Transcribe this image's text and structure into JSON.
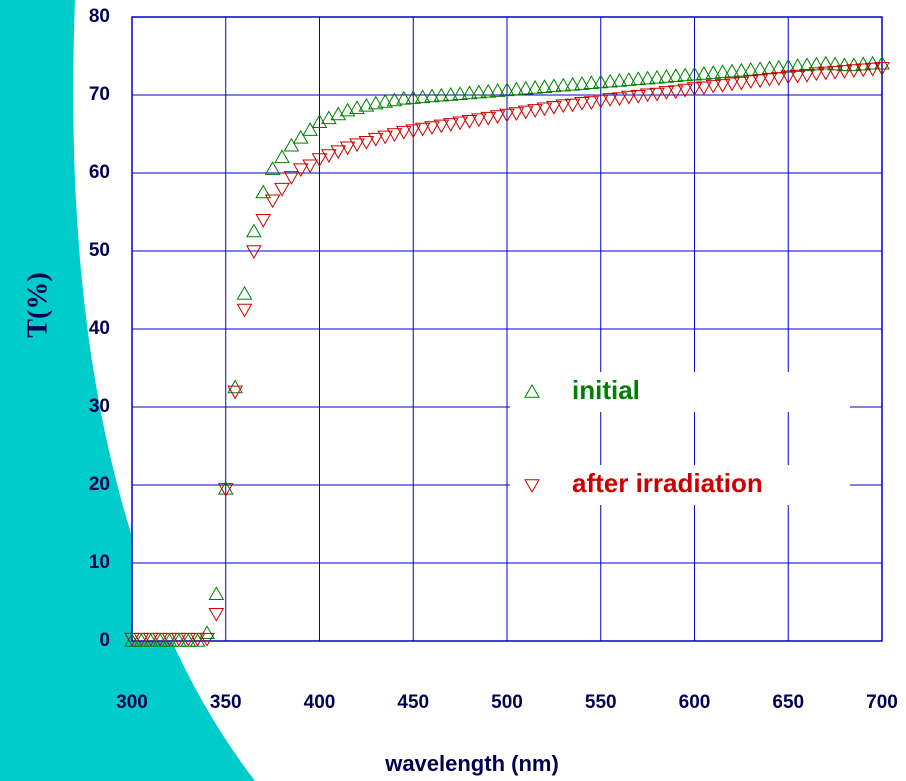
{
  "chart_data": {
    "type": "scatter",
    "xlabel": "wavelength (nm)",
    "ylabel": "T(%)",
    "x": [
      300,
      305,
      310,
      315,
      320,
      325,
      330,
      335,
      340,
      345,
      350,
      355,
      360,
      365,
      370,
      375,
      380,
      385,
      390,
      395,
      400,
      405,
      410,
      415,
      420,
      425,
      430,
      435,
      440,
      445,
      450,
      455,
      460,
      465,
      470,
      475,
      480,
      485,
      490,
      495,
      500,
      505,
      510,
      515,
      520,
      525,
      530,
      535,
      540,
      545,
      550,
      555,
      560,
      565,
      570,
      575,
      580,
      585,
      590,
      595,
      600,
      605,
      610,
      615,
      620,
      625,
      630,
      635,
      640,
      645,
      650,
      655,
      660,
      665,
      670,
      675,
      680,
      685,
      690,
      695,
      700
    ],
    "series": [
      {
        "name": "initial",
        "color": "#008000",
        "marker": "triangle-up",
        "values": [
          0,
          0,
          0,
          0,
          0,
          0,
          0,
          0,
          1,
          6,
          19.5,
          32.5,
          44.5,
          52.5,
          57.5,
          60.5,
          62,
          63.5,
          64.5,
          65.5,
          66.5,
          67,
          67.5,
          68,
          68.3,
          68.6,
          68.9,
          69.1,
          69.3,
          69.5,
          69.6,
          69.7,
          69.8,
          69.9,
          70,
          70.1,
          70.2,
          70.3,
          70.4,
          70.5,
          70.6,
          70.7,
          70.8,
          70.9,
          71,
          71.1,
          71.2,
          71.3,
          71.4,
          71.5,
          71.6,
          71.7,
          71.8,
          71.9,
          72,
          72.1,
          72.2,
          72.3,
          72.4,
          72.5,
          72.6,
          72.7,
          72.8,
          72.9,
          73,
          73.1,
          73.2,
          73.3,
          73.4,
          73.5,
          73.6,
          73.7,
          73.8,
          73.9,
          74,
          73.9,
          73.8,
          73.8,
          73.9,
          74,
          74
        ]
      },
      {
        "name": "after irradiation",
        "color": "#cc0000",
        "marker": "triangle-down",
        "values": [
          0.3,
          0.3,
          0.3,
          0.3,
          0.3,
          0.3,
          0.3,
          0.3,
          0.3,
          3.5,
          19.5,
          32,
          42.5,
          50,
          54,
          56.5,
          58,
          59.5,
          60.5,
          61,
          61.8,
          62.3,
          62.8,
          63.3,
          63.7,
          64,
          64.4,
          64.7,
          65,
          65.3,
          65.5,
          65.7,
          65.9,
          66.1,
          66.3,
          66.5,
          66.7,
          66.9,
          67.1,
          67.3,
          67.5,
          67.7,
          67.9,
          68.1,
          68.3,
          68.5,
          68.7,
          68.8,
          69,
          69.1,
          69.3,
          69.5,
          69.6,
          69.8,
          69.9,
          70.1,
          70.2,
          70.4,
          70.5,
          70.7,
          70.9,
          71,
          71.2,
          71.3,
          71.5,
          71.6,
          71.8,
          71.9,
          72.1,
          72.2,
          72.4,
          72.5,
          72.6,
          72.8,
          72.9,
          73,
          73.1,
          73.2,
          73.3,
          73.4,
          73.5
        ]
      }
    ],
    "xlim": [
      300,
      700
    ],
    "xticks": [
      300,
      350,
      400,
      450,
      500,
      550,
      600,
      650,
      700
    ],
    "ylim": [
      0,
      80
    ],
    "yticks": [
      0,
      10,
      20,
      30,
      40,
      50,
      60,
      70,
      80
    ],
    "grid": true,
    "legend": "center-right",
    "axis_color": "#0000cc"
  }
}
